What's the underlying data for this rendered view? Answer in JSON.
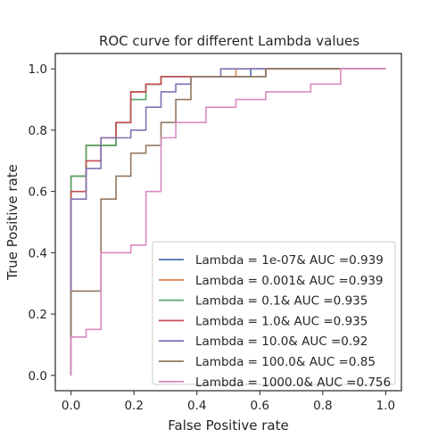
{
  "chart_data": {
    "type": "line",
    "title": "ROC curve for different Lambda values",
    "xlabel": "False Positive rate",
    "ylabel": "True Positive rate",
    "xlim": [
      -0.05,
      1.05
    ],
    "ylim": [
      -0.05,
      1.05
    ],
    "xticks": [
      0.0,
      0.2,
      0.4,
      0.6,
      0.8,
      1.0
    ],
    "yticks": [
      0.0,
      0.2,
      0.4,
      0.6,
      0.8,
      1.0
    ],
    "tick_labels": [
      "0.0",
      "0.2",
      "0.4",
      "0.6",
      "0.8",
      "1.0"
    ],
    "grid": false,
    "legend_position": "lower-right",
    "series": [
      {
        "name": "Lambda = 1e-07& AUC =0.939",
        "color": "#4c72b0",
        "points": [
          [
            0,
            0
          ],
          [
            0,
            0.65
          ],
          [
            0.048,
            0.65
          ],
          [
            0.048,
            0.75
          ],
          [
            0.143,
            0.75
          ],
          [
            0.143,
            0.825
          ],
          [
            0.19,
            0.825
          ],
          [
            0.19,
            0.925
          ],
          [
            0.238,
            0.925
          ],
          [
            0.238,
            0.95
          ],
          [
            0.286,
            0.95
          ],
          [
            0.286,
            0.975
          ],
          [
            0.571,
            0.975
          ],
          [
            0.571,
            1.0
          ],
          [
            1.0,
            1.0
          ]
        ]
      },
      {
        "name": "Lambda = 0.001& AUC =0.939",
        "color": "#dd8452",
        "points": [
          [
            0,
            0
          ],
          [
            0,
            0.65
          ],
          [
            0.048,
            0.65
          ],
          [
            0.048,
            0.75
          ],
          [
            0.143,
            0.75
          ],
          [
            0.143,
            0.825
          ],
          [
            0.19,
            0.825
          ],
          [
            0.19,
            0.925
          ],
          [
            0.238,
            0.925
          ],
          [
            0.238,
            0.95
          ],
          [
            0.286,
            0.95
          ],
          [
            0.286,
            0.975
          ],
          [
            0.524,
            0.975
          ],
          [
            0.524,
            1.0
          ],
          [
            1.0,
            1.0
          ]
        ]
      },
      {
        "name": "Lambda = 0.1& AUC =0.935",
        "color": "#55a868",
        "points": [
          [
            0,
            0
          ],
          [
            0,
            0.65
          ],
          [
            0.048,
            0.65
          ],
          [
            0.048,
            0.75
          ],
          [
            0.143,
            0.75
          ],
          [
            0.143,
            0.825
          ],
          [
            0.19,
            0.825
          ],
          [
            0.19,
            0.9
          ],
          [
            0.238,
            0.9
          ],
          [
            0.238,
            0.95
          ],
          [
            0.286,
            0.95
          ],
          [
            0.286,
            0.975
          ],
          [
            0.619,
            0.975
          ],
          [
            0.619,
            1.0
          ],
          [
            1.0,
            1.0
          ]
        ]
      },
      {
        "name": "Lambda = 1.0& AUC =0.935",
        "color": "#c44e52",
        "points": [
          [
            0,
            0
          ],
          [
            0,
            0.6
          ],
          [
            0.048,
            0.6
          ],
          [
            0.048,
            0.7
          ],
          [
            0.095,
            0.7
          ],
          [
            0.095,
            0.775
          ],
          [
            0.143,
            0.775
          ],
          [
            0.143,
            0.825
          ],
          [
            0.19,
            0.825
          ],
          [
            0.19,
            0.925
          ],
          [
            0.238,
            0.925
          ],
          [
            0.238,
            0.95
          ],
          [
            0.286,
            0.95
          ],
          [
            0.286,
            0.975
          ],
          [
            0.619,
            0.975
          ],
          [
            0.619,
            1.0
          ],
          [
            1.0,
            1.0
          ]
        ]
      },
      {
        "name": "Lambda = 10.0& AUC =0.92",
        "color": "#8172b3",
        "points": [
          [
            0,
            0
          ],
          [
            0,
            0.575
          ],
          [
            0.048,
            0.575
          ],
          [
            0.048,
            0.675
          ],
          [
            0.095,
            0.675
          ],
          [
            0.095,
            0.775
          ],
          [
            0.19,
            0.775
          ],
          [
            0.19,
            0.8
          ],
          [
            0.238,
            0.8
          ],
          [
            0.238,
            0.875
          ],
          [
            0.286,
            0.875
          ],
          [
            0.286,
            0.925
          ],
          [
            0.333,
            0.925
          ],
          [
            0.333,
            0.95
          ],
          [
            0.381,
            0.95
          ],
          [
            0.381,
            0.975
          ],
          [
            0.476,
            0.975
          ],
          [
            0.476,
            1.0
          ],
          [
            1.0,
            1.0
          ]
        ]
      },
      {
        "name": "Lambda = 100.0& AUC =0.85",
        "color": "#937860",
        "points": [
          [
            0,
            0
          ],
          [
            0,
            0.275
          ],
          [
            0.095,
            0.275
          ],
          [
            0.095,
            0.575
          ],
          [
            0.143,
            0.575
          ],
          [
            0.143,
            0.65
          ],
          [
            0.19,
            0.65
          ],
          [
            0.19,
            0.725
          ],
          [
            0.238,
            0.725
          ],
          [
            0.238,
            0.75
          ],
          [
            0.286,
            0.75
          ],
          [
            0.286,
            0.825
          ],
          [
            0.333,
            0.825
          ],
          [
            0.333,
            0.9
          ],
          [
            0.381,
            0.9
          ],
          [
            0.381,
            0.975
          ],
          [
            0.619,
            0.975
          ],
          [
            0.619,
            1.0
          ],
          [
            1.0,
            1.0
          ]
        ]
      },
      {
        "name": "Lambda = 1000.0& AUC =0.756",
        "color": "#da8bc3",
        "points": [
          [
            0,
            0
          ],
          [
            0,
            0.125
          ],
          [
            0.048,
            0.125
          ],
          [
            0.048,
            0.15
          ],
          [
            0.095,
            0.15
          ],
          [
            0.095,
            0.4
          ],
          [
            0.19,
            0.4
          ],
          [
            0.19,
            0.425
          ],
          [
            0.238,
            0.425
          ],
          [
            0.238,
            0.6
          ],
          [
            0.286,
            0.6
          ],
          [
            0.286,
            0.775
          ],
          [
            0.333,
            0.775
          ],
          [
            0.333,
            0.825
          ],
          [
            0.429,
            0.825
          ],
          [
            0.429,
            0.875
          ],
          [
            0.524,
            0.875
          ],
          [
            0.524,
            0.9
          ],
          [
            0.619,
            0.9
          ],
          [
            0.619,
            0.925
          ],
          [
            0.762,
            0.925
          ],
          [
            0.762,
            0.95
          ],
          [
            0.857,
            0.95
          ],
          [
            0.857,
            1.0
          ],
          [
            1.0,
            1.0
          ]
        ]
      }
    ]
  },
  "colors": {
    "axes_frame": "#262626",
    "background": "#ffffff"
  }
}
